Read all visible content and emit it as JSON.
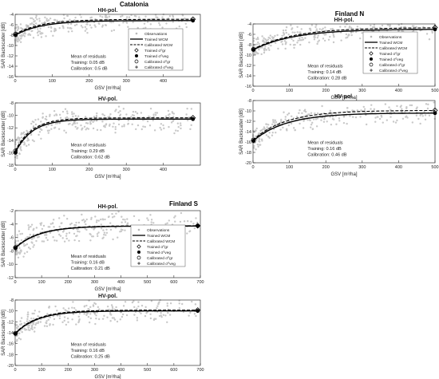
{
  "figure": {
    "sites": [
      "Catalonia",
      "Finland N",
      "Finland S"
    ]
  },
  "legend_labels": [
    "Observations",
    "Trained WCM",
    "Calibrated WCM",
    "Trained σ⁰gr",
    "Trained σ⁰veg",
    "Calibrated σ⁰gr",
    "Calibrated σ⁰veg"
  ],
  "chart_data": [
    {
      "type": "scatter",
      "site": "Catalonia",
      "title": "HH-pol.",
      "xlabel": "GSV  [m³/ha]",
      "ylabel": "SAR Backscatter  [dB]",
      "xlim": [
        0,
        500
      ],
      "ylim": [
        -16,
        -4
      ],
      "xticks": [
        0,
        100,
        200,
        300,
        400
      ],
      "yticks": [
        -4,
        -6,
        -8,
        -10,
        -12,
        -14,
        -16
      ],
      "curve": {
        "s_gr": -8.0,
        "s_veg": -5.2,
        "b": 0.014,
        "x_end": 480
      },
      "calibrated_curve": {
        "s_gr": -7.8,
        "s_veg": -4.95,
        "b": 0.014
      },
      "scatter_points": [
        [
          5,
          -8.2
        ],
        [
          12,
          -7.5
        ],
        [
          20,
          -6.9
        ],
        [
          35,
          -6.3
        ],
        [
          50,
          -6.0
        ],
        [
          80,
          -5.6
        ],
        [
          120,
          -5.4
        ],
        [
          160,
          -5.2
        ],
        [
          200,
          -5.3
        ],
        [
          250,
          -5.1
        ],
        [
          300,
          -5.0
        ],
        [
          350,
          -5.1
        ],
        [
          400,
          -5.0
        ],
        [
          450,
          -5.2
        ]
      ],
      "residuals": {
        "heading": "Mean of residuals",
        "training": "Training: 0.05 dB",
        "calibration": "Calibration: 0.5 dB"
      },
      "legend": true,
      "grid": false
    },
    {
      "type": "scatter",
      "site": "Catalonia",
      "title": "HV-pol.",
      "xlabel": "GSV  [m³/ha]",
      "ylabel": "SAR Backscatter  [dB]",
      "xlim": [
        0,
        500
      ],
      "ylim": [
        -18,
        -8
      ],
      "xticks": [
        0,
        100,
        200,
        300,
        400
      ],
      "yticks": [
        -8,
        -10,
        -12,
        -14,
        -16,
        -18
      ],
      "curve": {
        "s_gr": -16.0,
        "s_veg": -10.6,
        "b": 0.022,
        "x_end": 480
      },
      "calibrated_curve": {
        "s_gr": -15.7,
        "s_veg": -10.4,
        "b": 0.022
      },
      "scatter_points": [
        [
          5,
          -16.5
        ],
        [
          15,
          -14.2
        ],
        [
          30,
          -13.0
        ],
        [
          50,
          -12.0
        ],
        [
          80,
          -11.5
        ],
        [
          120,
          -11.2
        ],
        [
          160,
          -11.0
        ],
        [
          220,
          -10.8
        ],
        [
          280,
          -10.7
        ],
        [
          350,
          -10.6
        ],
        [
          420,
          -10.5
        ],
        [
          470,
          -10.4
        ]
      ],
      "residuals": {
        "heading": "Mean of residuals",
        "training": "Training: 0.29 dB",
        "calibration": "Calibration: 0.62 dB"
      },
      "legend": false,
      "grid": false
    },
    {
      "type": "scatter",
      "site": "Finland N",
      "title": "HH-pol.",
      "xlabel": "GSV  [m³/ha]",
      "ylabel": "SAR Backscatter  [dB]",
      "xlim": [
        0,
        500
      ],
      "ylim": [
        -16,
        -4
      ],
      "xticks": [
        0,
        100,
        200,
        300,
        400,
        500
      ],
      "yticks": [
        -4,
        -6,
        -8,
        -10,
        -12,
        -14,
        -16
      ],
      "curve": {
        "s_gr": -9.0,
        "s_veg": -5.0,
        "b": 0.009,
        "x_end": 500
      },
      "calibrated_curve": {
        "s_gr": -8.9,
        "s_veg": -4.7,
        "b": 0.009
      },
      "scatter_points": [
        [
          5,
          -9.2
        ],
        [
          20,
          -8.5
        ],
        [
          40,
          -7.8
        ],
        [
          60,
          -7.2
        ],
        [
          90,
          -6.8
        ],
        [
          130,
          -6.3
        ],
        [
          170,
          -6.0
        ],
        [
          220,
          -5.7
        ],
        [
          270,
          -5.6
        ],
        [
          330,
          -5.4
        ],
        [
          400,
          -5.3
        ],
        [
          460,
          -5.2
        ]
      ],
      "residuals": {
        "heading": "Mean of residuals",
        "training": "Training: 0.14 dB",
        "calibration": "Calibration: 0.28 dB"
      },
      "legend": true,
      "grid": false
    },
    {
      "type": "scatter",
      "site": "Finland N",
      "title": "HV-pol.",
      "xlabel": "GSV  [m³/ha]",
      "ylabel": "SAR Backscatter  [dB]",
      "xlim": [
        0,
        500
      ],
      "ylim": [
        -20,
        -8
      ],
      "xticks": [
        0,
        100,
        200,
        300,
        400,
        500
      ],
      "yticks": [
        -8,
        -10,
        -12,
        -14,
        -16,
        -18,
        -20
      ],
      "curve": {
        "s_gr": -15.8,
        "s_veg": -10.4,
        "b": 0.011,
        "x_end": 500
      },
      "calibrated_curve": {
        "s_gr": -15.6,
        "s_veg": -9.9,
        "b": 0.011
      },
      "scatter_points": [
        [
          5,
          -16.0
        ],
        [
          20,
          -14.5
        ],
        [
          40,
          -13.6
        ],
        [
          70,
          -12.8
        ],
        [
          100,
          -12.2
        ],
        [
          140,
          -11.6
        ],
        [
          190,
          -11.2
        ],
        [
          250,
          -10.9
        ],
        [
          310,
          -10.7
        ],
        [
          380,
          -10.5
        ],
        [
          450,
          -10.4
        ]
      ],
      "residuals": {
        "heading": "Mean of residuals",
        "training": "Training: 0.16 dB",
        "calibration": "Calibration: 0.46 dB"
      },
      "legend": false,
      "grid": false
    },
    {
      "type": "scatter",
      "site": "Finland S",
      "title": "HH-pol.",
      "xlabel": "GSV  [m³/ha]",
      "ylabel": "SAR Backscatter  [dB]",
      "xlim": [
        0,
        700
      ],
      "ylim": [
        -12,
        -2
      ],
      "xticks": [
        0,
        100,
        200,
        300,
        400,
        500,
        600,
        700
      ],
      "yticks": [
        -2,
        -4,
        -6,
        -8,
        -10,
        -12
      ],
      "curve": {
        "s_gr": -7.6,
        "s_veg": -4.3,
        "b": 0.011,
        "x_end": 690
      },
      "calibrated_curve": {
        "s_gr": -7.5,
        "s_veg": -4.25,
        "b": 0.011
      },
      "scatter_points": [
        [
          5,
          -7.8
        ],
        [
          20,
          -6.9
        ],
        [
          40,
          -6.2
        ],
        [
          70,
          -5.6
        ],
        [
          110,
          -5.2
        ],
        [
          160,
          -4.9
        ],
        [
          220,
          -4.7
        ],
        [
          300,
          -4.6
        ],
        [
          380,
          -4.5
        ],
        [
          460,
          -4.4
        ],
        [
          560,
          -4.4
        ],
        [
          650,
          -4.3
        ]
      ],
      "residuals": {
        "heading": "Mean of residuals",
        "training": "Training: 0.16 dB",
        "calibration": "Calibration: 0.21 dB"
      },
      "legend": true,
      "grid": false
    },
    {
      "type": "scatter",
      "site": "Finland S",
      "title": "HV-pol.",
      "xlabel": "GSV  [m³/ha]",
      "ylabel": "SAR Backscatter  [dB]",
      "xlim": [
        0,
        700
      ],
      "ylim": [
        -20,
        -8
      ],
      "xticks": [
        0,
        100,
        200,
        300,
        400,
        500,
        600,
        700
      ],
      "yticks": [
        -8,
        -10,
        -12,
        -14,
        -16,
        -18,
        -20
      ],
      "curve": {
        "s_gr": -14.2,
        "s_veg": -10.0,
        "b": 0.012,
        "x_end": 690
      },
      "calibrated_curve": {
        "s_gr": -14.1,
        "s_veg": -9.85,
        "b": 0.012
      },
      "scatter_points": [
        [
          5,
          -14.5
        ],
        [
          20,
          -13.3
        ],
        [
          40,
          -12.5
        ],
        [
          70,
          -11.8
        ],
        [
          110,
          -11.2
        ],
        [
          160,
          -10.8
        ],
        [
          220,
          -10.5
        ],
        [
          300,
          -10.3
        ],
        [
          400,
          -10.2
        ],
        [
          500,
          -10.1
        ],
        [
          600,
          -10.0
        ],
        [
          680,
          -10.0
        ]
      ],
      "residuals": {
        "heading": "Mean of residuals",
        "training": "Training: 0.16 dB",
        "calibration": "Calibration: 0.25 dB"
      },
      "legend": false,
      "grid": false
    }
  ]
}
